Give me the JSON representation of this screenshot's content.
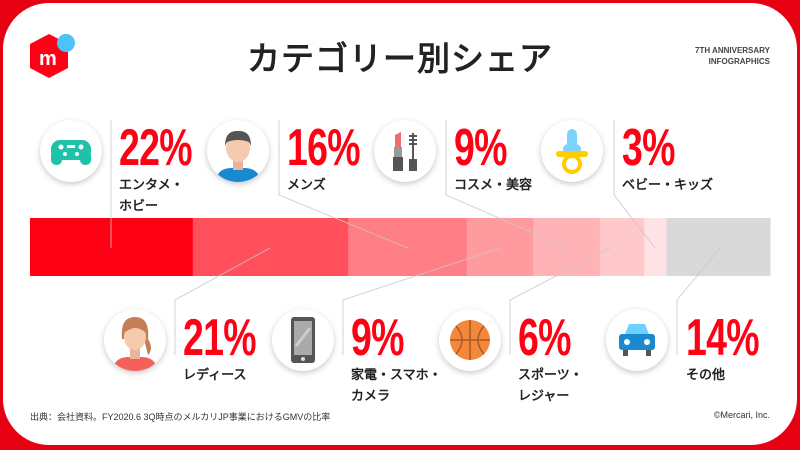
{
  "header": {
    "title": "カテゴリー別シェア",
    "anniversary_line1": "7TH ANNIVERSARY",
    "anniversary_line2": "INFOGRAPHICS"
  },
  "chart_data": {
    "type": "bar",
    "orientation": "horizontal-stacked",
    "title": "カテゴリー別シェア",
    "categories": [
      "エンタメ・ホビー",
      "レディース",
      "メンズ",
      "家電・スマホ・カメラ",
      "コスメ・美容",
      "スポーツ・レジャー",
      "ベビー・キッズ",
      "その他"
    ],
    "values": [
      22,
      21,
      16,
      9,
      9,
      6,
      3,
      14
    ],
    "colors": [
      "#ff0015",
      "#ff4f5a",
      "#ff7d85",
      "#ff9a9f",
      "#ffb3b6",
      "#ffc8cb",
      "#ffe2e4",
      "#d9d9d9"
    ],
    "xlim": [
      0,
      100
    ],
    "unit": "%"
  },
  "items": [
    {
      "pct": "22%",
      "label1": "エンタメ・",
      "label2": "ホビー",
      "icon": "game-controller-icon"
    },
    {
      "pct": "16%",
      "label1": "メンズ",
      "label2": "",
      "icon": "man-icon"
    },
    {
      "pct": "9%",
      "label1": "コスメ・美容",
      "label2": "",
      "icon": "cosmetics-icon"
    },
    {
      "pct": "3%",
      "label1": "ベビー・キッズ",
      "label2": "",
      "icon": "pacifier-icon"
    },
    {
      "pct": "21%",
      "label1": "レディース",
      "label2": "",
      "icon": "woman-icon"
    },
    {
      "pct": "9%",
      "label1": "家電・スマホ・",
      "label2": "カメラ",
      "icon": "smartphone-icon"
    },
    {
      "pct": "6%",
      "label1": "スポーツ・",
      "label2": "レジャー",
      "icon": "basketball-icon"
    },
    {
      "pct": "14%",
      "label1": "その他",
      "label2": "",
      "icon": "car-icon"
    }
  ],
  "footer": {
    "source": "出典：会社資料。FY2020.6 3Q時点のメルカリJP事業におけるGMVの比率",
    "copyright": "©Mercari, Inc."
  }
}
